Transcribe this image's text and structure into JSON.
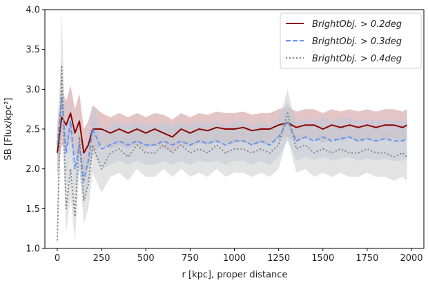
{
  "chart_data": {
    "type": "line",
    "title": "",
    "xlabel": "r [kpc], proper distance",
    "ylabel": "SB [Flux/kpc²]",
    "xlim": [
      -70,
      2070
    ],
    "ylim": [
      1.0,
      4.0
    ],
    "xticks": [
      0,
      250,
      500,
      750,
      1000,
      1250,
      1500,
      1750,
      2000
    ],
    "yticks": [
      1.0,
      1.5,
      2.0,
      2.5,
      3.0,
      3.5,
      4.0
    ],
    "xtick_labels": [
      "0",
      "250",
      "500",
      "750",
      "1000",
      "1250",
      "1500",
      "1750",
      "2000"
    ],
    "ytick_labels": [
      "1.0",
      "1.5",
      "2.0",
      "2.5",
      "3.0",
      "3.5",
      "4.0"
    ],
    "grid": false,
    "legend_position": "top-right",
    "x": [
      0,
      25,
      50,
      75,
      100,
      125,
      150,
      175,
      200,
      250,
      300,
      350,
      400,
      450,
      500,
      550,
      600,
      650,
      700,
      750,
      800,
      850,
      900,
      950,
      1000,
      1050,
      1100,
      1150,
      1200,
      1250,
      1300,
      1350,
      1400,
      1450,
      1500,
      1550,
      1600,
      1650,
      1700,
      1750,
      1800,
      1850,
      1900,
      1950,
      1975
    ],
    "series": [
      {
        "name": "BrightObj. > 0.2deg",
        "style": "solid",
        "color": "#8b0000",
        "band_color": "#c98c8c",
        "values": [
          2.2,
          2.65,
          2.55,
          2.7,
          2.45,
          2.6,
          2.2,
          2.3,
          2.5,
          2.5,
          2.45,
          2.5,
          2.45,
          2.5,
          2.45,
          2.5,
          2.45,
          2.4,
          2.5,
          2.45,
          2.5,
          2.48,
          2.52,
          2.5,
          2.5,
          2.52,
          2.48,
          2.5,
          2.5,
          2.55,
          2.58,
          2.52,
          2.55,
          2.55,
          2.5,
          2.55,
          2.52,
          2.55,
          2.52,
          2.55,
          2.52,
          2.55,
          2.55,
          2.52,
          2.55
        ],
        "band_low": [
          1.9,
          2.3,
          2.25,
          2.35,
          2.15,
          2.25,
          1.9,
          2.0,
          2.2,
          2.3,
          2.25,
          2.3,
          2.25,
          2.3,
          2.25,
          2.3,
          2.25,
          2.2,
          2.3,
          2.28,
          2.32,
          2.3,
          2.35,
          2.32,
          2.32,
          2.35,
          2.3,
          2.32,
          2.32,
          2.38,
          2.4,
          2.35,
          2.38,
          2.38,
          2.33,
          2.38,
          2.35,
          2.38,
          2.35,
          2.38,
          2.35,
          2.38,
          2.38,
          2.35,
          2.38
        ],
        "band_high": [
          2.5,
          3.0,
          2.85,
          3.05,
          2.75,
          2.95,
          2.5,
          2.6,
          2.8,
          2.7,
          2.65,
          2.7,
          2.65,
          2.7,
          2.65,
          2.7,
          2.68,
          2.62,
          2.7,
          2.65,
          2.7,
          2.68,
          2.72,
          2.7,
          2.7,
          2.72,
          2.68,
          2.7,
          2.7,
          2.75,
          2.78,
          2.72,
          2.75,
          2.75,
          2.7,
          2.75,
          2.72,
          2.75,
          2.72,
          2.75,
          2.72,
          2.75,
          2.75,
          2.72,
          2.75
        ]
      },
      {
        "name": "BrightObj. > 0.3deg",
        "style": "dashed",
        "color": "#6495ed",
        "band_color": "#b9c9e3",
        "values": [
          2.3,
          2.9,
          2.2,
          2.6,
          2.0,
          2.3,
          1.85,
          2.1,
          2.5,
          2.25,
          2.3,
          2.35,
          2.3,
          2.35,
          2.3,
          2.3,
          2.35,
          2.3,
          2.35,
          2.3,
          2.35,
          2.32,
          2.35,
          2.3,
          2.35,
          2.35,
          2.3,
          2.35,
          2.3,
          2.4,
          2.6,
          2.35,
          2.4,
          2.35,
          2.4,
          2.35,
          2.38,
          2.4,
          2.35,
          2.38,
          2.35,
          2.38,
          2.35,
          2.35,
          2.38
        ],
        "band_low": [
          2.0,
          2.5,
          1.9,
          2.3,
          1.7,
          2.0,
          1.55,
          1.8,
          2.2,
          2.0,
          2.05,
          2.1,
          2.05,
          2.1,
          2.05,
          2.05,
          2.1,
          2.05,
          2.1,
          2.05,
          2.1,
          2.08,
          2.1,
          2.05,
          2.1,
          2.1,
          2.05,
          2.1,
          2.05,
          2.15,
          2.35,
          2.1,
          2.15,
          2.1,
          2.15,
          2.1,
          2.13,
          2.15,
          2.1,
          2.13,
          2.1,
          2.13,
          2.1,
          2.1,
          2.13
        ],
        "band_high": [
          2.6,
          3.3,
          2.5,
          2.9,
          2.3,
          2.6,
          2.15,
          2.4,
          2.8,
          2.5,
          2.55,
          2.6,
          2.55,
          2.6,
          2.55,
          2.55,
          2.6,
          2.55,
          2.6,
          2.55,
          2.6,
          2.57,
          2.6,
          2.55,
          2.6,
          2.6,
          2.55,
          2.6,
          2.55,
          2.65,
          2.85,
          2.6,
          2.65,
          2.6,
          2.65,
          2.6,
          2.63,
          2.65,
          2.6,
          2.63,
          2.6,
          2.63,
          2.6,
          2.6,
          2.63
        ]
      },
      {
        "name": "BrightObj. > 0.4deg",
        "style": "dotted",
        "color": "#808080",
        "band_color": "#c8c8c8",
        "values": [
          1.1,
          3.3,
          1.5,
          2.0,
          1.4,
          2.4,
          1.6,
          1.8,
          2.3,
          2.0,
          2.2,
          2.25,
          2.15,
          2.3,
          2.2,
          2.2,
          2.3,
          2.2,
          2.3,
          2.2,
          2.25,
          2.2,
          2.3,
          2.2,
          2.25,
          2.25,
          2.2,
          2.25,
          2.2,
          2.3,
          2.7,
          2.25,
          2.3,
          2.2,
          2.25,
          2.2,
          2.25,
          2.2,
          2.2,
          2.25,
          2.2,
          2.2,
          2.15,
          2.2,
          2.15
        ],
        "band_low": [
          0.95,
          2.8,
          1.2,
          1.65,
          1.1,
          2.0,
          1.3,
          1.5,
          1.95,
          1.7,
          1.9,
          1.95,
          1.85,
          2.0,
          1.9,
          1.9,
          2.0,
          1.9,
          2.0,
          1.9,
          1.95,
          1.9,
          2.0,
          1.9,
          1.95,
          1.95,
          1.9,
          1.95,
          1.9,
          2.0,
          2.4,
          1.95,
          2.0,
          1.9,
          1.95,
          1.9,
          1.95,
          1.9,
          1.9,
          1.95,
          1.9,
          1.9,
          1.85,
          1.9,
          1.85
        ],
        "band_high": [
          1.5,
          4.0,
          2.0,
          2.45,
          1.8,
          2.8,
          1.95,
          2.15,
          2.65,
          2.35,
          2.5,
          2.55,
          2.45,
          2.6,
          2.5,
          2.5,
          2.6,
          2.5,
          2.6,
          2.5,
          2.55,
          2.5,
          2.6,
          2.5,
          2.55,
          2.55,
          2.5,
          2.55,
          2.5,
          2.6,
          3.0,
          2.55,
          2.6,
          2.5,
          2.55,
          2.5,
          2.55,
          2.5,
          2.5,
          2.55,
          2.5,
          2.5,
          2.45,
          2.5,
          2.45
        ]
      }
    ]
  }
}
